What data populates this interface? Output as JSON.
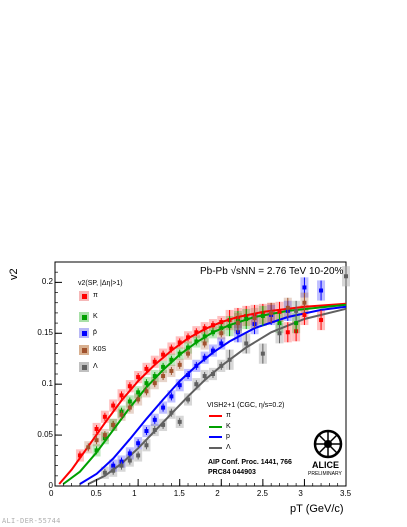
{
  "chart_data": {
    "type": "scatter",
    "title": "Pb-Pb √sNN = 2.76 TeV 10-20%",
    "xlabel": "pT (GeV/c)",
    "ylabel": "v2",
    "xlim": [
      0,
      3.5
    ],
    "ylim": [
      0,
      0.22
    ],
    "x_ticks": [
      "0",
      "0.5",
      "1",
      "1.5",
      "2",
      "2.5",
      "3",
      "3.5"
    ],
    "y_ticks": [
      "0",
      "0.05",
      "0.1",
      "0.15",
      "0.2"
    ],
    "legend_data_title": "v2(SP, |Δη|>1)",
    "legend_model_title": "VISH2+1 (CGC, η/s=0.2)",
    "reference": [
      "AIP Conf. Proc. 1441, 766",
      "PRC84 044903"
    ],
    "logo_text": [
      "ALICE",
      "PRELIMINARY"
    ],
    "watermark": "ALI-DER-55744",
    "series": [
      {
        "name": "π",
        "color": "#ff0000",
        "points": [
          [
            0.3,
            0.03
          ],
          [
            0.5,
            0.056
          ],
          [
            0.6,
            0.068
          ],
          [
            0.7,
            0.079
          ],
          [
            0.8,
            0.089
          ],
          [
            0.9,
            0.098
          ],
          [
            1.0,
            0.107
          ],
          [
            1.1,
            0.115
          ],
          [
            1.2,
            0.122
          ],
          [
            1.3,
            0.129
          ],
          [
            1.4,
            0.135
          ],
          [
            1.5,
            0.141
          ],
          [
            1.6,
            0.146
          ],
          [
            1.7,
            0.151
          ],
          [
            1.8,
            0.155
          ],
          [
            1.9,
            0.158
          ],
          [
            2.0,
            0.161
          ],
          [
            2.1,
            0.163
          ],
          [
            2.2,
            0.165
          ],
          [
            2.3,
            0.167
          ],
          [
            2.4,
            0.168
          ],
          [
            2.5,
            0.169
          ],
          [
            2.6,
            0.17
          ],
          [
            2.7,
            0.171
          ],
          [
            2.8,
            0.151
          ],
          [
            2.9,
            0.152
          ],
          [
            3.0,
            0.168
          ],
          [
            3.2,
            0.163
          ]
        ]
      },
      {
        "name": "K",
        "color": "#00a000",
        "points": [
          [
            0.5,
            0.035
          ],
          [
            0.6,
            0.047
          ],
          [
            0.7,
            0.06
          ],
          [
            0.8,
            0.073
          ],
          [
            0.9,
            0.083
          ],
          [
            1.0,
            0.092
          ],
          [
            1.1,
            0.101
          ],
          [
            1.2,
            0.108
          ],
          [
            1.3,
            0.117
          ],
          [
            1.4,
            0.124
          ],
          [
            1.5,
            0.13
          ],
          [
            1.6,
            0.136
          ],
          [
            1.7,
            0.142
          ],
          [
            1.8,
            0.147
          ],
          [
            1.9,
            0.151
          ],
          [
            2.0,
            0.155
          ],
          [
            2.1,
            0.157
          ],
          [
            2.2,
            0.162
          ],
          [
            2.3,
            0.164
          ],
          [
            2.5,
            0.167
          ],
          [
            2.7,
            0.16
          ],
          [
            2.9,
            0.16
          ]
        ]
      },
      {
        "name": "p̄",
        "color": "#0000ff",
        "points": [
          [
            0.7,
            0.02
          ],
          [
            0.8,
            0.024
          ],
          [
            0.9,
            0.032
          ],
          [
            1.0,
            0.042
          ],
          [
            1.1,
            0.054
          ],
          [
            1.2,
            0.065
          ],
          [
            1.3,
            0.077
          ],
          [
            1.4,
            0.088
          ],
          [
            1.5,
            0.099
          ],
          [
            1.6,
            0.109
          ],
          [
            1.7,
            0.118
          ],
          [
            1.8,
            0.126
          ],
          [
            1.9,
            0.133
          ],
          [
            2.0,
            0.14
          ],
          [
            2.2,
            0.151
          ],
          [
            2.4,
            0.159
          ],
          [
            2.6,
            0.168
          ],
          [
            2.8,
            0.172
          ],
          [
            3.0,
            0.195
          ],
          [
            3.2,
            0.192
          ]
        ]
      },
      {
        "name": "K0S",
        "color": "#a0522d",
        "points": [
          [
            0.4,
            0.038
          ],
          [
            0.5,
            0.045
          ],
          [
            0.6,
            0.05
          ],
          [
            0.7,
            0.06
          ],
          [
            0.8,
            0.07
          ],
          [
            0.9,
            0.077
          ],
          [
            1.0,
            0.085
          ],
          [
            1.1,
            0.093
          ],
          [
            1.2,
            0.101
          ],
          [
            1.3,
            0.108
          ],
          [
            1.4,
            0.113
          ],
          [
            1.5,
            0.119
          ],
          [
            1.6,
            0.13
          ],
          [
            1.8,
            0.14
          ],
          [
            2.0,
            0.15
          ],
          [
            2.2,
            0.16
          ],
          [
            2.4,
            0.165
          ],
          [
            2.6,
            0.17
          ],
          [
            2.8,
            0.175
          ],
          [
            3.0,
            0.18
          ]
        ]
      },
      {
        "name": "Λ",
        "color": "#606060",
        "points": [
          [
            0.6,
            0.013
          ],
          [
            0.7,
            0.015
          ],
          [
            0.8,
            0.02
          ],
          [
            0.9,
            0.025
          ],
          [
            1.0,
            0.03
          ],
          [
            1.1,
            0.04
          ],
          [
            1.2,
            0.055
          ],
          [
            1.3,
            0.06
          ],
          [
            1.4,
            0.072
          ],
          [
            1.5,
            0.063
          ],
          [
            1.6,
            0.085
          ],
          [
            1.7,
            0.1
          ],
          [
            1.8,
            0.108
          ],
          [
            1.9,
            0.11
          ],
          [
            2.0,
            0.118
          ],
          [
            2.1,
            0.124
          ],
          [
            2.3,
            0.14
          ],
          [
            2.5,
            0.13
          ],
          [
            2.7,
            0.15
          ],
          [
            2.9,
            0.172
          ],
          [
            3.5,
            0.206
          ]
        ]
      }
    ],
    "model_curves": [
      {
        "name": "π",
        "color": "#ff0000",
        "points": [
          [
            0.05,
            0.002
          ],
          [
            0.2,
            0.016
          ],
          [
            0.4,
            0.039
          ],
          [
            0.6,
            0.062
          ],
          [
            0.8,
            0.084
          ],
          [
            1.0,
            0.103
          ],
          [
            1.2,
            0.119
          ],
          [
            1.4,
            0.133
          ],
          [
            1.6,
            0.145
          ],
          [
            1.8,
            0.154
          ],
          [
            2.0,
            0.161
          ],
          [
            2.2,
            0.166
          ],
          [
            2.5,
            0.171
          ],
          [
            3.0,
            0.176
          ],
          [
            3.5,
            0.179
          ]
        ]
      },
      {
        "name": "K",
        "color": "#00a000",
        "points": [
          [
            0.1,
            0.002
          ],
          [
            0.3,
            0.014
          ],
          [
            0.5,
            0.033
          ],
          [
            0.7,
            0.055
          ],
          [
            0.9,
            0.077
          ],
          [
            1.1,
            0.097
          ],
          [
            1.3,
            0.114
          ],
          [
            1.5,
            0.129
          ],
          [
            1.7,
            0.141
          ],
          [
            1.9,
            0.151
          ],
          [
            2.1,
            0.158
          ],
          [
            2.4,
            0.166
          ],
          [
            2.8,
            0.172
          ],
          [
            3.5,
            0.178
          ]
        ]
      },
      {
        "name": "p",
        "color": "#0000ff",
        "points": [
          [
            0.3,
            0.002
          ],
          [
            0.5,
            0.012
          ],
          [
            0.7,
            0.027
          ],
          [
            0.9,
            0.046
          ],
          [
            1.1,
            0.066
          ],
          [
            1.3,
            0.085
          ],
          [
            1.5,
            0.103
          ],
          [
            1.7,
            0.118
          ],
          [
            1.9,
            0.131
          ],
          [
            2.1,
            0.142
          ],
          [
            2.4,
            0.155
          ],
          [
            2.8,
            0.166
          ],
          [
            3.2,
            0.173
          ],
          [
            3.5,
            0.176
          ]
        ]
      },
      {
        "name": "Λ",
        "color": "#606060",
        "points": [
          [
            0.4,
            0.002
          ],
          [
            0.6,
            0.01
          ],
          [
            0.8,
            0.022
          ],
          [
            1.0,
            0.037
          ],
          [
            1.2,
            0.054
          ],
          [
            1.4,
            0.071
          ],
          [
            1.6,
            0.088
          ],
          [
            1.8,
            0.104
          ],
          [
            2.0,
            0.118
          ],
          [
            2.3,
            0.136
          ],
          [
            2.6,
            0.151
          ],
          [
            3.0,
            0.164
          ],
          [
            3.5,
            0.174
          ]
        ]
      }
    ]
  }
}
